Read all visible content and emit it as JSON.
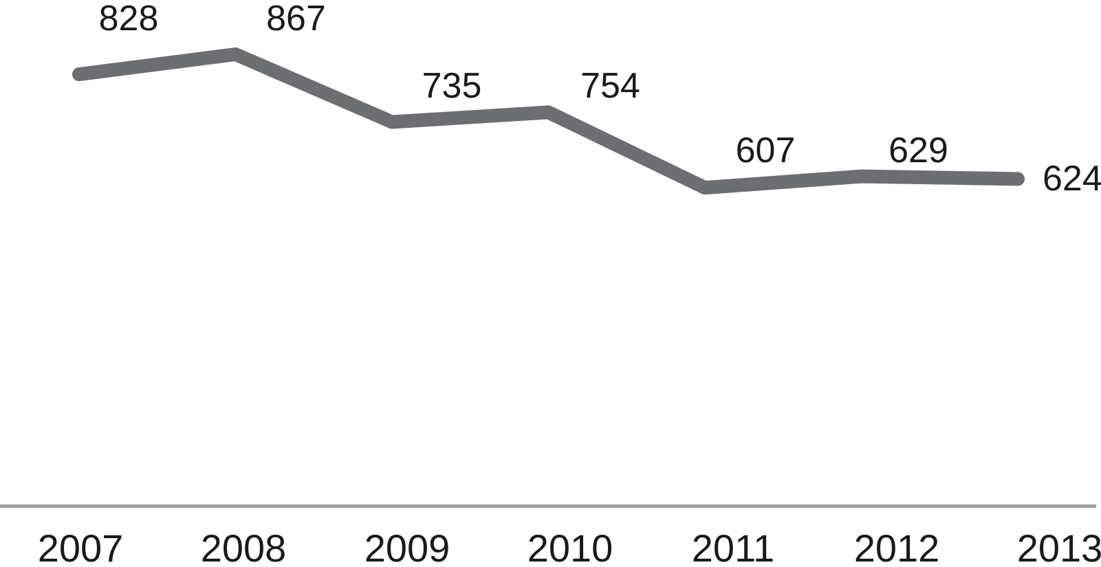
{
  "chart_data": {
    "type": "line",
    "title": "",
    "xlabel": "",
    "ylabel": "",
    "categories": [
      "2007",
      "2008",
      "2009",
      "2010",
      "2011",
      "2012",
      "2013"
    ],
    "values": [
      828,
      867,
      735,
      754,
      607,
      629,
      624
    ],
    "data_labels": [
      "828",
      "867",
      "735",
      "754",
      "607",
      "629",
      "624"
    ],
    "ylim": [
      0,
      975
    ],
    "grid": false,
    "legend": false,
    "y_axis_visible": false,
    "x_axis_visible": true
  },
  "colors": {
    "line": "#6d6e71",
    "axis_line": "#a0a1a4",
    "data_label_text": "#1a1a1a",
    "tick_label_text": "#1a1a1a",
    "background": "#ffffff"
  }
}
